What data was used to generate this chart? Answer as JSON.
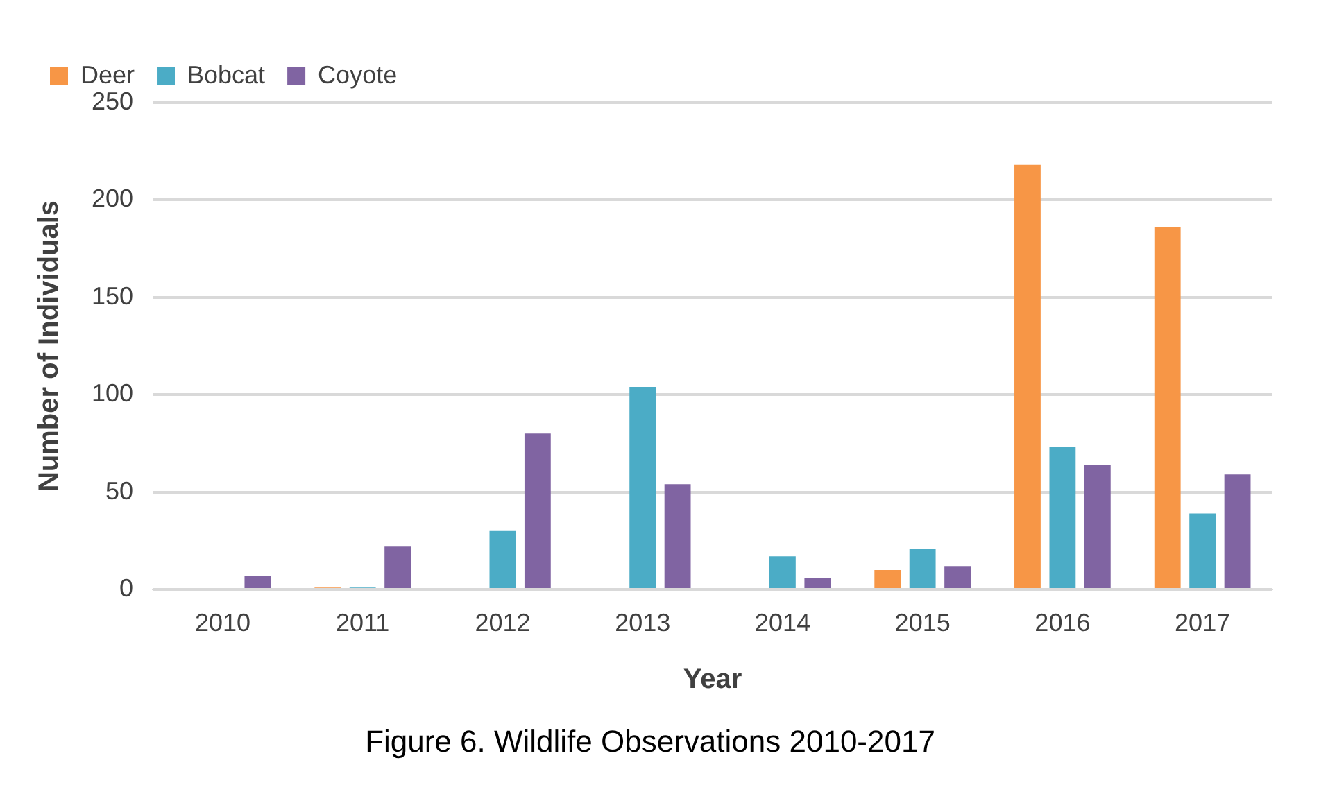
{
  "chart_data": {
    "type": "bar",
    "title": "Figure 6. Wildlife Observations 2010-2017",
    "xlabel": "Year",
    "ylabel": "Number of Individuals",
    "categories": [
      "2010",
      "2011",
      "2012",
      "2013",
      "2014",
      "2015",
      "2016",
      "2017"
    ],
    "series": [
      {
        "name": "Deer",
        "color": "#f79646",
        "values": [
          0,
          1,
          0,
          0,
          0,
          10,
          218,
          186
        ]
      },
      {
        "name": "Bobcat",
        "color": "#4bacc6",
        "values": [
          0,
          1,
          30,
          104,
          17,
          21,
          73,
          39
        ]
      },
      {
        "name": "Coyote",
        "color": "#8064a2",
        "values": [
          7,
          22,
          80,
          54,
          6,
          12,
          64,
          59
        ]
      }
    ],
    "ylim": [
      0,
      250
    ],
    "yticks": [
      0,
      50,
      100,
      150,
      200,
      250
    ],
    "grid": "y",
    "legend": "top left"
  }
}
